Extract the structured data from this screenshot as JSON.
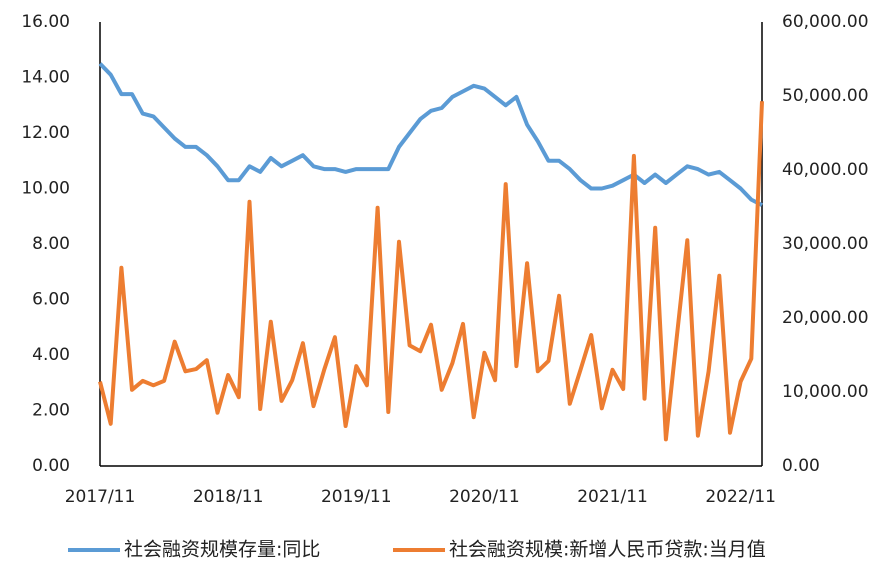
{
  "chart_data": {
    "type": "line",
    "categories": [
      "2017/11",
      null,
      null,
      null,
      null,
      null,
      null,
      null,
      null,
      null,
      null,
      null,
      "2018/11",
      null,
      null,
      null,
      null,
      null,
      null,
      null,
      null,
      null,
      null,
      null,
      "2019/11",
      null,
      null,
      null,
      null,
      null,
      null,
      null,
      null,
      null,
      null,
      null,
      "2020/11",
      null,
      null,
      null,
      null,
      null,
      null,
      null,
      null,
      null,
      null,
      null,
      "2021/11",
      null,
      null,
      null,
      null,
      null,
      null,
      null,
      null,
      null,
      null,
      null,
      "2022/11",
      null,
      null
    ],
    "series": [
      {
        "name": "社会融资规模存量:同比",
        "color": "#5b9bd5",
        "values": [
          14.5,
          14.1,
          13.4,
          13.4,
          12.7,
          12.6,
          12.2,
          11.8,
          11.5,
          11.5,
          11.2,
          10.8,
          10.3,
          10.3,
          10.8,
          10.6,
          11.1,
          10.8,
          11.0,
          11.2,
          10.8,
          10.7,
          10.7,
          10.6,
          10.7,
          10.7,
          10.7,
          10.7,
          11.5,
          12.0,
          12.5,
          12.8,
          12.9,
          13.3,
          13.5,
          13.7,
          13.6,
          13.3,
          13.0,
          13.3,
          12.3,
          11.7,
          11.0,
          11.0,
          10.7,
          10.3,
          10.0,
          10.0,
          10.1,
          10.3,
          10.5,
          10.2,
          10.5,
          10.2,
          10.5,
          10.8,
          10.7,
          10.5,
          10.6,
          10.3,
          10.0,
          9.6,
          9.4
        ]
      },
      {
        "name": "社会融资规模:新增人民币贷款:当月值",
        "color": "#ed7d31",
        "axis": "y2",
        "values": [
          11400,
          5700,
          26800,
          10300,
          11500,
          10900,
          11500,
          16800,
          12800,
          13100,
          14300,
          7200,
          12300,
          9300,
          35700,
          7700,
          19500,
          8800,
          11600,
          16600,
          8100,
          13000,
          17400,
          5400,
          13500,
          10900,
          34900,
          7300,
          30300,
          16300,
          15500,
          19100,
          10300,
          13900,
          19200,
          6600,
          15300,
          11600,
          38100,
          13500,
          27400,
          12800,
          14200,
          23000,
          8400,
          13000,
          17700,
          7800,
          13000,
          10400,
          41900,
          9100,
          32200,
          3600,
          17200,
          30500,
          4100,
          12800,
          25700,
          4500,
          11400,
          14500,
          49300
        ]
      }
    ],
    "ylim": [
      0,
      16
    ],
    "yticks": [
      {
        "value": 0,
        "label": "0.00"
      },
      {
        "value": 2,
        "label": "2.00"
      },
      {
        "value": 4,
        "label": "4.00"
      },
      {
        "value": 6,
        "label": "6.00"
      },
      {
        "value": 8,
        "label": "8.00"
      },
      {
        "value": 10,
        "label": "10.00"
      },
      {
        "value": 12,
        "label": "12.00"
      },
      {
        "value": 14,
        "label": "14.00"
      },
      {
        "value": 16,
        "label": "16.00"
      }
    ],
    "y2lim": [
      0,
      60000
    ],
    "y2ticks": [
      {
        "value": 0,
        "label": "0.00"
      },
      {
        "value": 10000,
        "label": "10,000.00"
      },
      {
        "value": 20000,
        "label": "20,000.00"
      },
      {
        "value": 30000,
        "label": "30,000.00"
      },
      {
        "value": 40000,
        "label": "40,000.00"
      },
      {
        "value": 50000,
        "label": "50,000.00"
      },
      {
        "value": 60000,
        "label": "60,000.00"
      }
    ],
    "legend": "bottom"
  }
}
